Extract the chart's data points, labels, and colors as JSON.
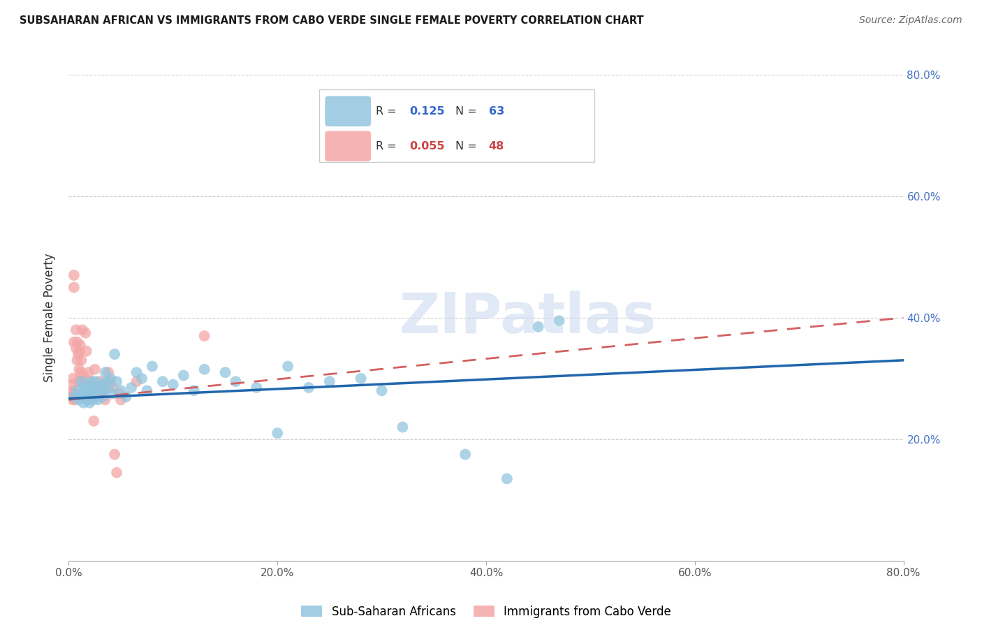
{
  "title": "SUBSAHARAN AFRICAN VS IMMIGRANTS FROM CABO VERDE SINGLE FEMALE POVERTY CORRELATION CHART",
  "source": "Source: ZipAtlas.com",
  "ylabel": "Single Female Poverty",
  "xlim": [
    0.0,
    0.8
  ],
  "ylim": [
    0.0,
    0.8
  ],
  "xticks": [
    0.0,
    0.2,
    0.4,
    0.6,
    0.8
  ],
  "yticks": [
    0.2,
    0.4,
    0.6,
    0.8
  ],
  "xtick_labels": [
    "0.0%",
    "20.0%",
    "40.0%",
    "60.0%",
    "80.0%"
  ],
  "ytick_labels": [
    "20.0%",
    "40.0%",
    "60.0%",
    "80.0%"
  ],
  "watermark": "ZIPatlas",
  "legend_blue_label": "Sub-Saharan Africans",
  "legend_pink_label": "Immigrants from Cabo Verde",
  "R_blue_text": "0.125",
  "N_blue_text": "63",
  "R_pink_text": "0.055",
  "N_pink_text": "48",
  "blue_color": "#92c5de",
  "pink_color": "#f4a6a6",
  "blue_line_color": "#2166ac",
  "pink_line_color": "#d46060",
  "blue_scatter_x": [
    0.005,
    0.008,
    0.01,
    0.012,
    0.012,
    0.014,
    0.015,
    0.015,
    0.016,
    0.017,
    0.018,
    0.018,
    0.019,
    0.02,
    0.02,
    0.021,
    0.022,
    0.022,
    0.023,
    0.024,
    0.025,
    0.025,
    0.026,
    0.027,
    0.028,
    0.03,
    0.031,
    0.032,
    0.033,
    0.034,
    0.035,
    0.036,
    0.038,
    0.04,
    0.042,
    0.044,
    0.046,
    0.05,
    0.055,
    0.06,
    0.065,
    0.07,
    0.075,
    0.08,
    0.09,
    0.1,
    0.11,
    0.12,
    0.13,
    0.15,
    0.16,
    0.18,
    0.2,
    0.21,
    0.23,
    0.25,
    0.28,
    0.3,
    0.32,
    0.38,
    0.42,
    0.45,
    0.47
  ],
  "blue_scatter_y": [
    0.27,
    0.28,
    0.265,
    0.275,
    0.295,
    0.26,
    0.275,
    0.285,
    0.27,
    0.28,
    0.265,
    0.29,
    0.275,
    0.26,
    0.285,
    0.27,
    0.28,
    0.295,
    0.265,
    0.275,
    0.285,
    0.27,
    0.295,
    0.28,
    0.265,
    0.285,
    0.275,
    0.29,
    0.27,
    0.28,
    0.31,
    0.295,
    0.285,
    0.3,
    0.275,
    0.34,
    0.295,
    0.28,
    0.27,
    0.285,
    0.31,
    0.3,
    0.28,
    0.32,
    0.295,
    0.29,
    0.305,
    0.28,
    0.315,
    0.31,
    0.295,
    0.285,
    0.21,
    0.32,
    0.285,
    0.295,
    0.3,
    0.28,
    0.22,
    0.175,
    0.135,
    0.385,
    0.395
  ],
  "pink_scatter_x": [
    0.002,
    0.003,
    0.003,
    0.004,
    0.004,
    0.004,
    0.005,
    0.005,
    0.005,
    0.006,
    0.006,
    0.007,
    0.007,
    0.008,
    0.008,
    0.009,
    0.009,
    0.01,
    0.01,
    0.011,
    0.011,
    0.012,
    0.012,
    0.013,
    0.014,
    0.015,
    0.016,
    0.017,
    0.018,
    0.019,
    0.02,
    0.022,
    0.024,
    0.025,
    0.026,
    0.028,
    0.03,
    0.032,
    0.035,
    0.038,
    0.04,
    0.042,
    0.044,
    0.046,
    0.048,
    0.05,
    0.065,
    0.13
  ],
  "pink_scatter_y": [
    0.27,
    0.275,
    0.29,
    0.265,
    0.28,
    0.3,
    0.45,
    0.47,
    0.36,
    0.265,
    0.275,
    0.35,
    0.38,
    0.33,
    0.36,
    0.34,
    0.295,
    0.315,
    0.345,
    0.31,
    0.355,
    0.33,
    0.295,
    0.38,
    0.305,
    0.295,
    0.375,
    0.345,
    0.265,
    0.31,
    0.28,
    0.295,
    0.23,
    0.315,
    0.285,
    0.27,
    0.295,
    0.28,
    0.265,
    0.31,
    0.295,
    0.285,
    0.175,
    0.145,
    0.275,
    0.265,
    0.295,
    0.37
  ]
}
